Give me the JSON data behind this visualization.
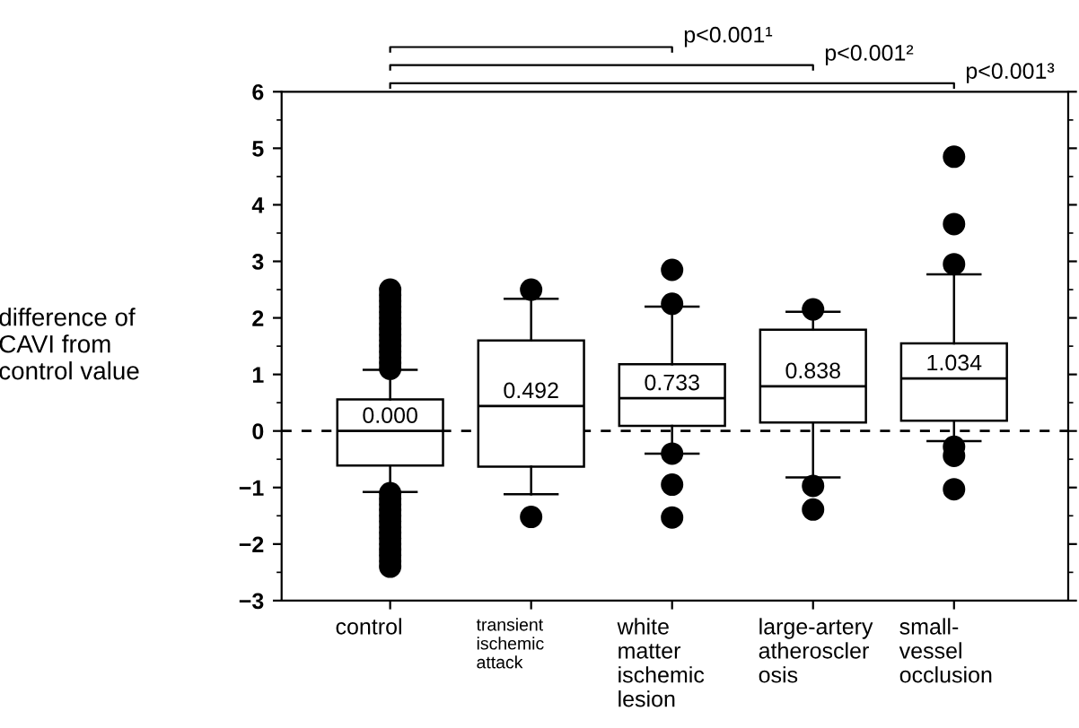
{
  "chart_data": {
    "type": "box",
    "ylabel": "difference of\nCAVI from\ncontrol value",
    "categories": [
      "control",
      "transient\nischemic\nattack",
      "white\nmatter\nischemic\nlesion",
      "large-artery\natheroscler\nosis",
      "small-\nvessel\nocclusion"
    ],
    "boxes": [
      {
        "low": -1.08,
        "q1": -0.61,
        "median": 0,
        "q3": 0.56,
        "high": 1.08,
        "outliers": [
          1.1,
          1.2,
          1.3,
          1.4,
          1.5,
          1.6,
          1.7,
          1.8,
          1.9,
          2.0,
          2.1,
          2.2,
          2.3,
          2.4,
          2.5,
          -1.1,
          -1.2,
          -1.3,
          -1.4,
          -1.5,
          -1.6,
          -1.7,
          -1.8,
          -1.9,
          -2.0,
          -2.1,
          -2.2,
          -2.3,
          -2.4
        ]
      },
      {
        "low": -1.12,
        "q1": -0.63,
        "median": 0.44,
        "q3": 1.6,
        "high": 2.34,
        "outliers": [
          2.5,
          -1.52
        ]
      },
      {
        "low": -0.4,
        "q1": 0.09,
        "median": 0.58,
        "q3": 1.18,
        "high": 2.2,
        "outliers": [
          2.85,
          2.25,
          -0.4,
          -0.95,
          -1.53
        ]
      },
      {
        "low": -0.82,
        "q1": 0.15,
        "median": 0.79,
        "q3": 1.79,
        "high": 2.11,
        "outliers": [
          2.15,
          -0.97,
          -1.39
        ]
      },
      {
        "low": -0.18,
        "q1": 0.18,
        "median": 0.93,
        "q3": 1.55,
        "high": 2.77,
        "outliers": [
          4.85,
          3.66,
          2.95,
          -0.28,
          -0.44,
          -1.03
        ]
      }
    ],
    "ylim": [
      -3,
      6
    ],
    "yticks": [
      -3,
      -2,
      -1,
      0,
      1,
      2,
      3,
      4,
      5,
      6
    ],
    "ref_lines": [
      {
        "axis": "y",
        "value": 0,
        "line_style": "dashed"
      }
    ],
    "annotations": [
      "0.000",
      "0.492",
      "0.733",
      "0.838",
      "1.034",
      "p<0.001¹",
      "p<0.001²",
      "p<0.001³"
    ]
  }
}
